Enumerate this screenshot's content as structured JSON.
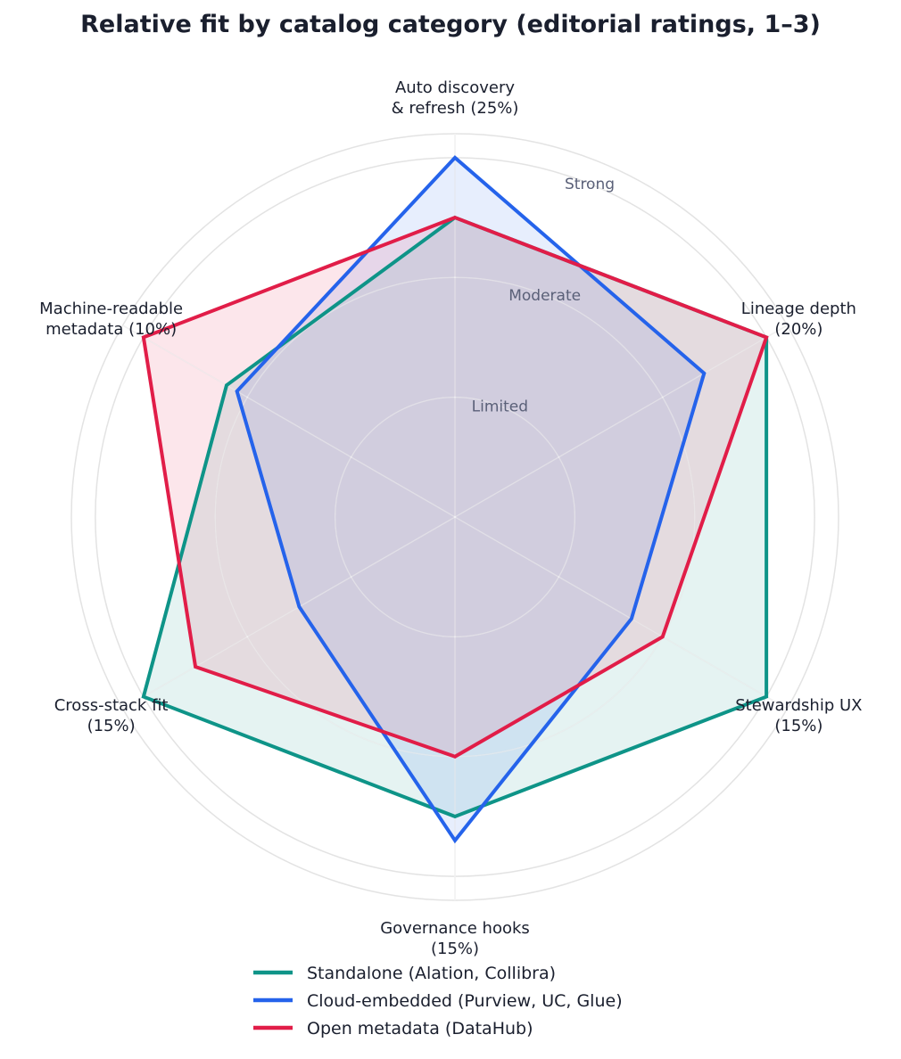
{
  "chart_data": {
    "type": "radar",
    "title": "Relative fit by catalog category (editorial ratings, 1–3)",
    "axes": [
      [
        "Auto discovery",
        "& refresh (25%)"
      ],
      [
        "Lineage depth",
        "(20%)"
      ],
      [
        "Stewardship UX",
        "(15%)"
      ],
      [
        "Governance hooks",
        "(15%)"
      ],
      [
        "Cross-stack fit",
        "(15%)"
      ],
      [
        "Machine-readable",
        "metadata (10%)"
      ]
    ],
    "ring_labels": [
      "Limited",
      "Moderate",
      "Strong"
    ],
    "rmin": 0,
    "rmax": 3.2,
    "rings": [
      1,
      2,
      3,
      3.2
    ],
    "series": [
      {
        "name": "Standalone (Alation, Collibra)",
        "color": "#0e9488",
        "fill_opacity": 0.11,
        "values": [
          2.5,
          3.0,
          3.0,
          2.5,
          3.0,
          2.2
        ]
      },
      {
        "name": "Cloud-embedded (Purview, UC, Glue)",
        "color": "#2563eb",
        "fill_opacity": 0.11,
        "values": [
          3.0,
          2.4,
          1.7,
          2.7,
          1.5,
          2.1
        ]
      },
      {
        "name": "Open metadata (DataHub)",
        "color": "#e11d48",
        "fill_opacity": 0.11,
        "values": [
          2.5,
          3.0,
          2.0,
          2.0,
          2.5,
          3.0
        ]
      }
    ],
    "legend": "bottom-center"
  }
}
